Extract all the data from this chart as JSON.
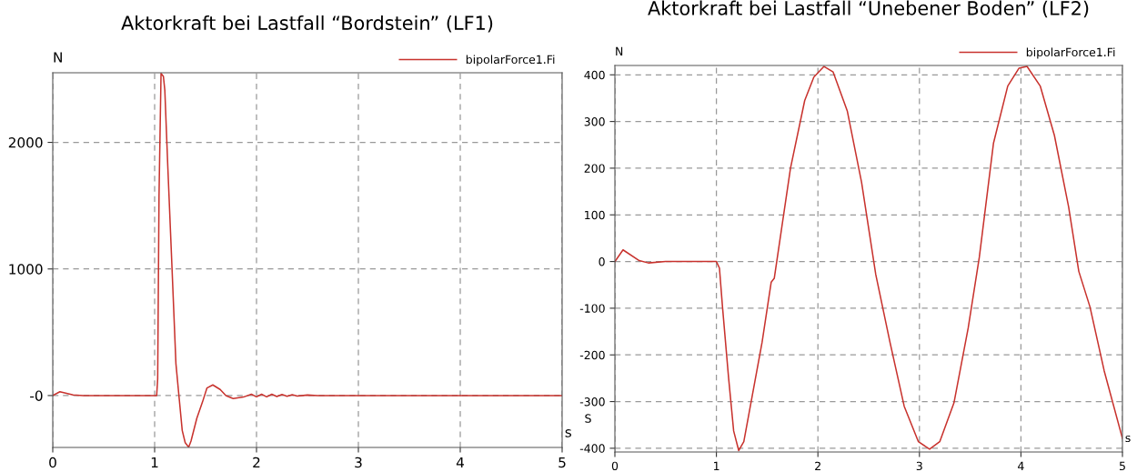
{
  "chart_data": [
    {
      "type": "line",
      "title": "Aktorkraft bei Lastfall “Bordstein” (LF1)",
      "xlabel": "s",
      "ylabel": "N",
      "grid": true,
      "legend": "top right",
      "xlim": [
        0,
        5
      ],
      "ylim": [
        -410,
        2550
      ],
      "xticks": [
        0,
        1,
        2,
        3,
        4,
        5
      ],
      "yticks": [
        {
          "value": 0,
          "label": "-0"
        },
        1000,
        2000
      ],
      "series": [
        {
          "name": "bipolarForce1.Fi",
          "color": "#c8322d",
          "x": [
            0,
            0.07,
            0.2,
            0.3,
            1.0,
            1.02,
            1.03,
            1.043,
            1.063,
            1.086,
            1.1,
            1.129,
            1.171,
            1.209,
            1.237,
            1.271,
            1.3,
            1.334,
            1.357,
            1.414,
            1.471,
            1.514,
            1.571,
            1.643,
            1.7,
            1.771,
            1.871,
            1.95,
            2.0,
            2.05,
            2.1,
            2.15,
            2.2,
            2.25,
            2.3,
            2.35,
            2.4,
            2.5,
            2.6,
            3.0,
            5.0
          ],
          "values": [
            0,
            30,
            5,
            0,
            0,
            0,
            132,
            1573,
            2545,
            2521,
            2413,
            1813,
            1000,
            252,
            12,
            -276,
            -372,
            -408,
            -360,
            -180,
            -48,
            60,
            84,
            48,
            0,
            -24,
            -12,
            10,
            -10,
            10,
            -10,
            10,
            -8,
            8,
            -6,
            6,
            -4,
            4,
            0,
            0,
            0
          ]
        }
      ]
    },
    {
      "type": "line",
      "title": "Aktorkraft bei Lastfall “Unebener Boden” (LF2)",
      "xlabel": "s",
      "ylabel": "N",
      "grid": true,
      "legend": "top right",
      "xlim": [
        0,
        5
      ],
      "ylim": [
        -408,
        420
      ],
      "xticks": [
        0,
        1,
        2,
        3,
        4,
        5
      ],
      "yticks": [
        -400,
        -300,
        -200,
        -100,
        0,
        100,
        200,
        300,
        400
      ],
      "annotations": [
        "S"
      ],
      "series": [
        {
          "name": "bipolarForce1.Fi",
          "color": "#c8322d",
          "x": [
            0,
            0.08,
            0.24,
            0.33,
            0.5,
            1.0,
            1.03,
            1.06,
            1.12,
            1.17,
            1.22,
            1.27,
            1.34,
            1.45,
            1.54,
            1.57,
            1.73,
            1.87,
            1.96,
            2.06,
            2.15,
            2.29,
            2.43,
            2.57,
            2.71,
            2.85,
            2.99,
            3.1,
            3.2,
            3.34,
            3.48,
            3.59,
            3.73,
            3.87,
            3.98,
            4.06,
            4.19,
            4.33,
            4.47,
            4.57,
            4.68,
            4.82,
            5.0
          ],
          "values": [
            0,
            25,
            2,
            -3,
            0,
            0,
            -14,
            -97,
            -249,
            -363,
            -405,
            -386,
            -303,
            -173,
            -44,
            -36,
            200,
            345,
            395,
            418,
            406,
            322,
            170,
            -28,
            -173,
            -310,
            -386,
            -402,
            -386,
            -303,
            -143,
            9,
            254,
            376,
            414,
            418,
            376,
            270,
            117,
            -21,
            -97,
            -234,
            -379
          ]
        }
      ]
    }
  ]
}
